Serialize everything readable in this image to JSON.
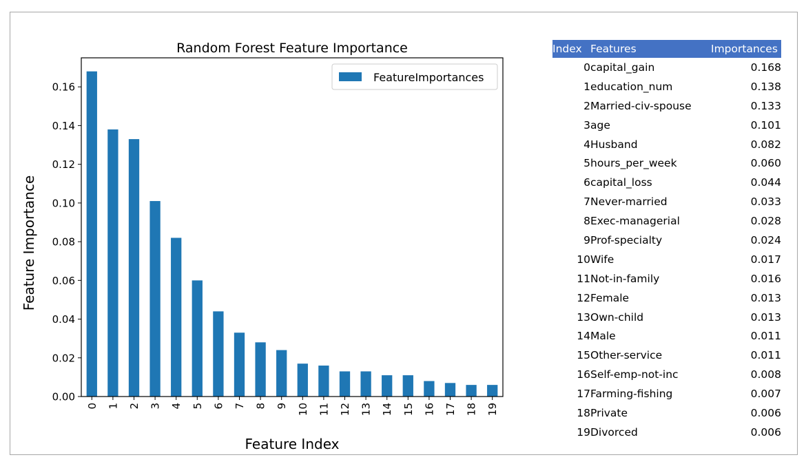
{
  "chart_data": {
    "type": "bar",
    "title": "Random Forest Feature Importance",
    "xlabel": "Feature Index",
    "ylabel": "Feature Importance",
    "categories": [
      "0",
      "1",
      "2",
      "3",
      "4",
      "5",
      "6",
      "7",
      "8",
      "9",
      "10",
      "11",
      "12",
      "13",
      "14",
      "15",
      "16",
      "17",
      "18",
      "19"
    ],
    "series": [
      {
        "name": "FeatureImportances",
        "values": [
          0.168,
          0.138,
          0.133,
          0.101,
          0.082,
          0.06,
          0.044,
          0.033,
          0.028,
          0.024,
          0.017,
          0.016,
          0.013,
          0.013,
          0.011,
          0.011,
          0.008,
          0.007,
          0.006,
          0.006
        ]
      }
    ],
    "ylim": [
      0,
      0.175
    ],
    "yticks": [
      "0.00",
      "0.02",
      "0.04",
      "0.06",
      "0.08",
      "0.10",
      "0.12",
      "0.14",
      "0.16"
    ],
    "legend_position": "top-right",
    "grid": false,
    "bar_color": "#1f77b4"
  },
  "table": {
    "headers": {
      "index": "Index",
      "features": "Features",
      "importances": "Importances"
    },
    "header_color": "#4472c4",
    "rows": [
      {
        "index": "0",
        "feature": "capital_gain",
        "importance": "0.168"
      },
      {
        "index": "1",
        "feature": "education_num",
        "importance": "0.138"
      },
      {
        "index": "2",
        "feature": "Married-civ-spouse",
        "importance": "0.133"
      },
      {
        "index": "3",
        "feature": "age",
        "importance": "0.101"
      },
      {
        "index": "4",
        "feature": "Husband",
        "importance": "0.082"
      },
      {
        "index": "5",
        "feature": "hours_per_week",
        "importance": "0.060"
      },
      {
        "index": "6",
        "feature": "capital_loss",
        "importance": "0.044"
      },
      {
        "index": "7",
        "feature": "Never-married",
        "importance": "0.033"
      },
      {
        "index": "8",
        "feature": "Exec-managerial",
        "importance": "0.028"
      },
      {
        "index": "9",
        "feature": "Prof-specialty",
        "importance": "0.024"
      },
      {
        "index": "10",
        "feature": "Wife",
        "importance": "0.017"
      },
      {
        "index": "11",
        "feature": "Not-in-family",
        "importance": "0.016"
      },
      {
        "index": "12",
        "feature": "Female",
        "importance": "0.013"
      },
      {
        "index": "13",
        "feature": "Own-child",
        "importance": "0.013"
      },
      {
        "index": "14",
        "feature": "Male",
        "importance": "0.011"
      },
      {
        "index": "15",
        "feature": "Other-service",
        "importance": "0.011"
      },
      {
        "index": "16",
        "feature": "Self-emp-not-inc",
        "importance": "0.008"
      },
      {
        "index": "17",
        "feature": "Farming-fishing",
        "importance": "0.007"
      },
      {
        "index": "18",
        "feature": "Private",
        "importance": "0.006"
      },
      {
        "index": "19",
        "feature": "Divorced",
        "importance": "0.006"
      }
    ]
  }
}
